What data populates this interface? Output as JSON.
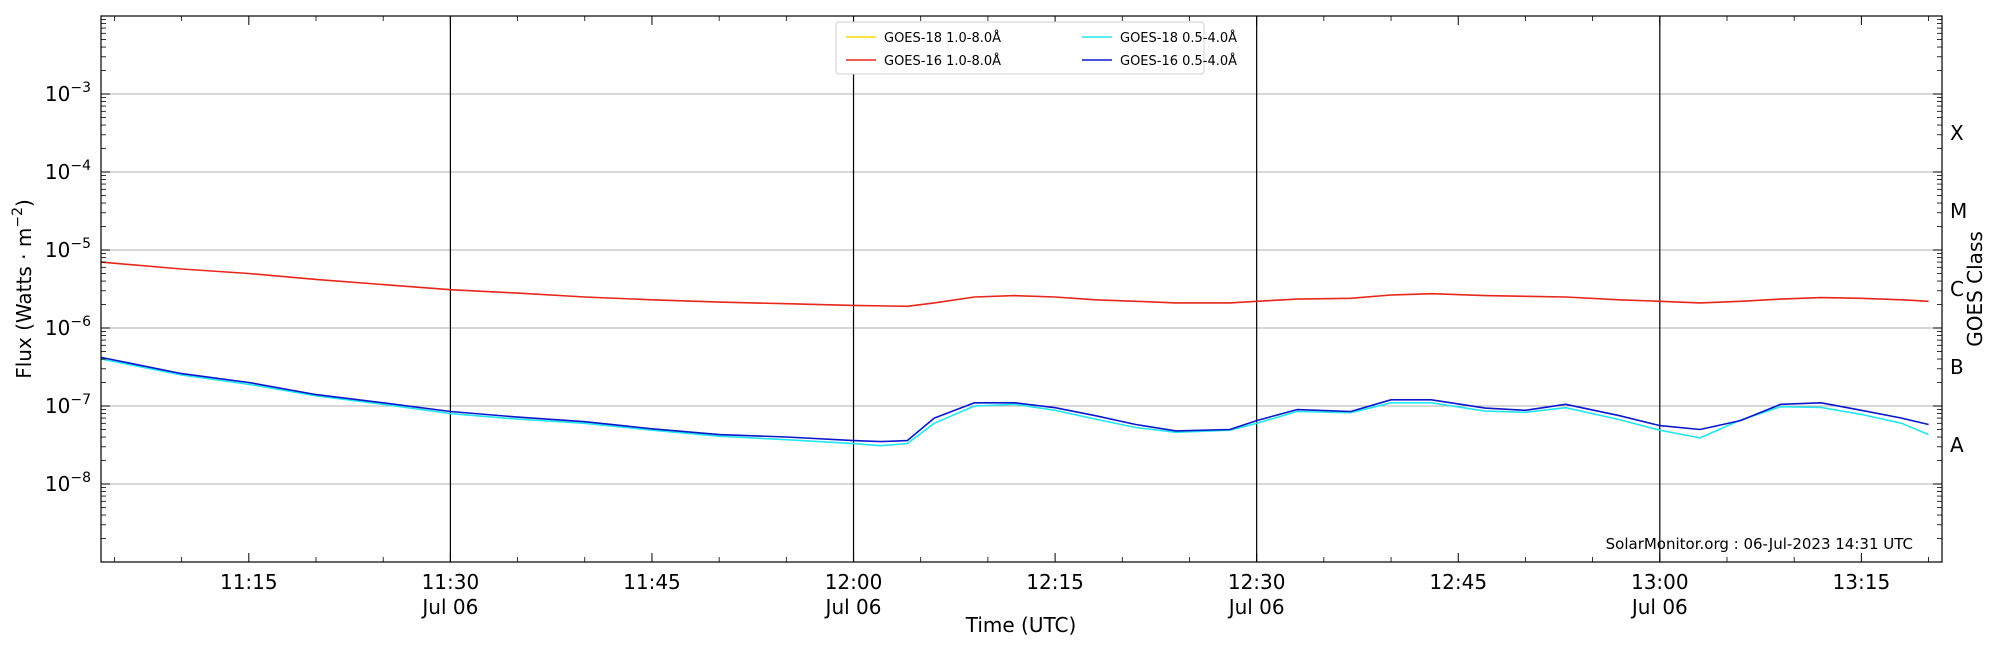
{
  "chart_data": {
    "type": "line",
    "xlabel": "Time (UTC)",
    "ylabel_main": "Flux (Watts · m",
    "ylabel_exp": "−2",
    "ylabel_close": ")",
    "ylabel_right": "GOES Class",
    "credit": "SolarMonitor.org : 06-Jul-2023 14:31 UTC",
    "x_range": [
      "11:04",
      "13:21"
    ],
    "y_scale": "log",
    "ylim": [
      1e-09,
      0.01
    ],
    "grid": "horizontal gridlines at each decade",
    "legend_position": "top-center",
    "y_ticks": [
      {
        "value": 1e-08,
        "base": "10",
        "exp": "−8"
      },
      {
        "value": 1e-07,
        "base": "10",
        "exp": "−7"
      },
      {
        "value": 1e-06,
        "base": "10",
        "exp": "−6"
      },
      {
        "value": 1e-05,
        "base": "10",
        "exp": "−5"
      },
      {
        "value": 0.0001,
        "base": "10",
        "exp": "−4"
      },
      {
        "value": 0.001,
        "base": "10",
        "exp": "−3"
      }
    ],
    "x_ticks": [
      {
        "time": "11:15",
        "label": "11:15",
        "sub": ""
      },
      {
        "time": "11:30",
        "label": "11:30",
        "sub": "Jul 06"
      },
      {
        "time": "11:45",
        "label": "11:45",
        "sub": ""
      },
      {
        "time": "12:00",
        "label": "12:00",
        "sub": "Jul 06"
      },
      {
        "time": "12:15",
        "label": "12:15",
        "sub": ""
      },
      {
        "time": "12:30",
        "label": "12:30",
        "sub": "Jul 06"
      },
      {
        "time": "12:45",
        "label": "12:45",
        "sub": ""
      },
      {
        "time": "13:00",
        "label": "13:00",
        "sub": "Jul 06"
      },
      {
        "time": "13:15",
        "label": "13:15",
        "sub": ""
      }
    ],
    "vlines": [
      "11:30",
      "12:00",
      "12:30",
      "13:00"
    ],
    "classes": [
      {
        "label": "A",
        "value": 3.16e-08
      },
      {
        "label": "B",
        "value": 3.16e-07
      },
      {
        "label": "C",
        "value": 3.16e-06
      },
      {
        "label": "M",
        "value": 3.16e-05
      },
      {
        "label": "X",
        "value": 0.000316
      }
    ],
    "series": [
      {
        "name": "GOES-18 1.0-8.0Å",
        "color": "#ffd700",
        "x": [],
        "y": []
      },
      {
        "name": "GOES-16 1.0-8.0Å",
        "color": "#e8261a",
        "x": [
          "11:04",
          "11:10",
          "11:15",
          "11:20",
          "11:25",
          "11:30",
          "11:35",
          "11:40",
          "11:45",
          "11:50",
          "11:55",
          "12:00",
          "12:04",
          "12:06",
          "12:09",
          "12:12",
          "12:15",
          "12:18",
          "12:21",
          "12:24",
          "12:28",
          "12:30",
          "12:33",
          "12:37",
          "12:40",
          "12:43",
          "12:47",
          "12:50",
          "12:53",
          "12:57",
          "13:00",
          "13:03",
          "13:06",
          "13:09",
          "13:12",
          "13:15",
          "13:18",
          "13:20"
        ],
        "y": [
          7e-06,
          5.7e-06,
          5e-06,
          4.2e-06,
          3.6e-06,
          3.1e-06,
          2.8e-06,
          2.5e-06,
          2.3e-06,
          2.15e-06,
          2.05e-06,
          1.95e-06,
          1.9e-06,
          2.1e-06,
          2.5e-06,
          2.6e-06,
          2.5e-06,
          2.3e-06,
          2.2e-06,
          2.1e-06,
          2.1e-06,
          2.2e-06,
          2.35e-06,
          2.4e-06,
          2.65e-06,
          2.75e-06,
          2.6e-06,
          2.55e-06,
          2.5e-06,
          2.3e-06,
          2.2e-06,
          2.1e-06,
          2.2e-06,
          2.35e-06,
          2.45e-06,
          2.4e-06,
          2.3e-06,
          2.2e-06
        ]
      },
      {
        "name": "GOES-18 0.5-4.0Å",
        "color": "#22e6f0",
        "x": [
          "11:04",
          "11:10",
          "11:15",
          "11:20",
          "11:25",
          "11:30",
          "11:35",
          "11:40",
          "11:45",
          "11:50",
          "11:55",
          "12:00",
          "12:02",
          "12:04",
          "12:06",
          "12:09",
          "12:12",
          "12:15",
          "12:18",
          "12:21",
          "12:24",
          "12:28",
          "12:30",
          "12:33",
          "12:37",
          "12:40",
          "12:43",
          "12:47",
          "12:50",
          "12:53",
          "12:57",
          "13:00",
          "13:03",
          "13:06",
          "13:09",
          "13:12",
          "13:15",
          "13:18",
          "13:20"
        ],
        "y": [
          4e-07,
          2.5e-07,
          1.9e-07,
          1.35e-07,
          1.05e-07,
          8e-08,
          6.8e-08,
          6e-08,
          4.9e-08,
          4.1e-08,
          3.7e-08,
          3.3e-08,
          3.1e-08,
          3.3e-08,
          6e-08,
          1e-07,
          1.05e-07,
          8.8e-08,
          6.8e-08,
          5.3e-08,
          4.6e-08,
          4.9e-08,
          6e-08,
          8.5e-08,
          8.2e-08,
          1.1e-07,
          1.1e-07,
          8.6e-08,
          8.3e-08,
          9.5e-08,
          6.7e-08,
          4.9e-08,
          3.9e-08,
          6.6e-08,
          9.8e-08,
          9.6e-08,
          7.8e-08,
          6e-08,
          4.3e-08
        ]
      },
      {
        "name": "GOES-16 0.5-4.0Å",
        "color": "#0a18cc",
        "x": [
          "11:04",
          "11:10",
          "11:15",
          "11:20",
          "11:25",
          "11:30",
          "11:35",
          "11:40",
          "11:45",
          "11:50",
          "11:55",
          "12:00",
          "12:02",
          "12:04",
          "12:06",
          "12:09",
          "12:12",
          "12:15",
          "12:18",
          "12:21",
          "12:24",
          "12:28",
          "12:30",
          "12:33",
          "12:37",
          "12:40",
          "12:43",
          "12:47",
          "12:50",
          "12:53",
          "12:57",
          "13:00",
          "13:03",
          "13:06",
          "13:09",
          "13:12",
          "13:15",
          "13:18",
          "13:20"
        ],
        "y": [
          4.2e-07,
          2.6e-07,
          2e-07,
          1.4e-07,
          1.1e-07,
          8.5e-08,
          7.2e-08,
          6.3e-08,
          5.1e-08,
          4.3e-08,
          4e-08,
          3.6e-08,
          3.5e-08,
          3.6e-08,
          7e-08,
          1.1e-07,
          1.1e-07,
          9.5e-08,
          7.5e-08,
          5.8e-08,
          4.8e-08,
          5e-08,
          6.5e-08,
          9e-08,
          8.5e-08,
          1.2e-07,
          1.2e-07,
          9.4e-08,
          8.8e-08,
          1.05e-07,
          7.5e-08,
          5.6e-08,
          5e-08,
          6.5e-08,
          1.05e-07,
          1.1e-07,
          8.8e-08,
          7e-08,
          5.8e-08
        ]
      }
    ]
  }
}
